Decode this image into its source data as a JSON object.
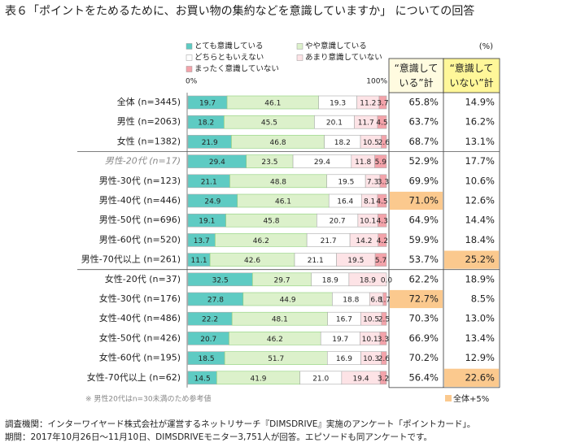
{
  "chart_data": {
    "type": "stacked_bar_table",
    "title": "表６「ポイントをためるために、お買い物の集約などを意識していますか」 についての回答",
    "x_start_label": "0%",
    "x_end_label": "100%",
    "unit_label": "(%)",
    "xlim": [
      0,
      100
    ],
    "categories": [
      "全体 (n=3445)",
      "男性 (n=2063)",
      "女性 (n=1382)",
      "男性-20代 (n=17)",
      "男性-30代 (n=123)",
      "男性-40代 (n=446)",
      "男性-50代 (n=696)",
      "男性-60代 (n=520)",
      "男性-70代以上 (n=261)",
      "女性-20代 (n=37)",
      "女性-30代 (n=176)",
      "女性-40代 (n=486)",
      "女性-50代 (n=426)",
      "女性-60代 (n=195)",
      "女性-70代以上 (n=62)"
    ],
    "muted_categories": [
      3
    ],
    "group_starts": [
      3,
      9
    ],
    "series": [
      {
        "name": "とても意識している",
        "color": "#5ecbc3",
        "values": [
          19.7,
          18.2,
          21.9,
          29.4,
          21.1,
          24.9,
          19.1,
          13.7,
          11.1,
          32.5,
          27.8,
          22.2,
          20.7,
          18.5,
          14.5
        ],
        "value_labels": [
          "19.7",
          "18.2",
          "21.9",
          "29.4",
          "21.1",
          "24.9",
          "19.1",
          "13.7",
          "11.1",
          "32.5",
          "27.8",
          "22.2",
          "20.7",
          "18.5",
          "14.5"
        ]
      },
      {
        "name": "やや意識している",
        "color": "#dcf1cb",
        "values": [
          46.1,
          45.5,
          46.8,
          23.5,
          48.8,
          46.1,
          45.8,
          46.2,
          42.6,
          29.7,
          44.9,
          48.1,
          46.2,
          51.7,
          41.9
        ],
        "value_labels": [
          "46.1",
          "45.5",
          "46.8",
          "23.5",
          "48.8",
          "46.1",
          "45.8",
          "46.2",
          "42.6",
          "29.7",
          "44.9",
          "48.1",
          "46.2",
          "51.7",
          "41.9"
        ]
      },
      {
        "name": "どちらともいえない",
        "color": "#ffffff",
        "values": [
          19.3,
          20.1,
          18.2,
          29.4,
          19.5,
          16.4,
          20.7,
          21.7,
          21.1,
          18.9,
          18.8,
          16.7,
          19.7,
          16.9,
          21.0
        ],
        "value_labels": [
          "19.3",
          "20.1",
          "18.2",
          "29.4",
          "19.5",
          "16.4",
          "20.7",
          "21.7",
          "21.1",
          "18.9",
          "18.8",
          "16.7",
          "19.7",
          "16.9",
          "21.0"
        ]
      },
      {
        "name": "あまり意識していない",
        "color": "#fde3e6",
        "values": [
          11.2,
          11.7,
          10.5,
          11.8,
          7.3,
          8.1,
          10.1,
          14.2,
          19.5,
          18.9,
          6.8,
          10.5,
          10.1,
          10.3,
          19.4
        ],
        "value_labels": [
          "11.2",
          "11.7",
          "10.5",
          "11.8",
          "7.3",
          "8.1",
          "10.1",
          "14.2",
          "19.5",
          "18.9",
          "6.8",
          "10.5",
          "10.1",
          "10.3",
          "19.4"
        ]
      },
      {
        "name": "まったく意識していない",
        "color": "#f3a3aa",
        "values": [
          3.7,
          4.5,
          2.6,
          5.9,
          3.3,
          4.5,
          4.3,
          4.2,
          5.7,
          0.0,
          1.7,
          2.5,
          3.3,
          2.6,
          3.2
        ],
        "value_labels": [
          "3.7",
          "4.5",
          "2.6",
          "5.9",
          "3.3",
          "4.5",
          "4.3",
          "4.2",
          "5.7",
          "0.0",
          "1.7",
          "2.5",
          "3.3",
          "2.6",
          "3.2"
        ]
      }
    ],
    "totals": [
      {
        "name": "“意識している”計",
        "header_color": "#fffbe0",
        "values": [
          65.8,
          63.7,
          68.7,
          52.9,
          69.9,
          71.0,
          64.9,
          59.9,
          53.7,
          62.2,
          72.7,
          70.3,
          66.9,
          70.2,
          56.4
        ],
        "value_labels": [
          "65.8%",
          "63.7%",
          "68.7%",
          "52.9%",
          "69.9%",
          "71.0%",
          "64.9%",
          "59.9%",
          "53.7%",
          "62.2%",
          "72.7%",
          "70.3%",
          "66.9%",
          "70.2%",
          "56.4%"
        ],
        "highlight": [
          5,
          10
        ]
      },
      {
        "name": "“意識していない”計",
        "header_color": "#fff799",
        "values": [
          14.9,
          16.2,
          13.1,
          17.7,
          10.6,
          12.6,
          14.4,
          18.4,
          25.2,
          18.9,
          8.5,
          13.0,
          13.4,
          12.9,
          22.6
        ],
        "value_labels": [
          "14.9%",
          "16.2%",
          "13.1%",
          "17.7%",
          "10.6%",
          "12.6%",
          "14.4%",
          "18.4%",
          "25.2%",
          "18.9%",
          "8.5%",
          "13.0%",
          "13.4%",
          "12.9%",
          "22.6%"
        ],
        "highlight": [
          8,
          14
        ]
      }
    ],
    "highlight_color": "#fbc98e",
    "highlight_legend": "全体+5%",
    "footnote": "※ 男性20代はn=30未満のため参考値",
    "source": [
      "調査機関：インターワイヤード株式会社が運営するネットリサーチ『DIMSDRIVE』実施のアンケート「ポイントカード」。",
      "期間：2017年10月26日～11月10日、DIMSDRIVEモニター3,751人が回答。エピソードも同アンケートです。"
    ]
  }
}
